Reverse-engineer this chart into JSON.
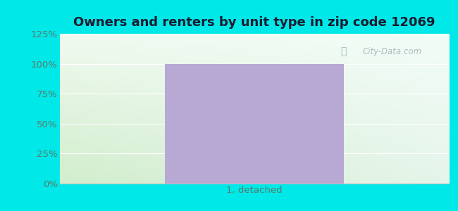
{
  "title": "Owners and renters by unit type in zip code 12069",
  "categories": [
    "1, detached"
  ],
  "values": [
    100
  ],
  "bar_color": "#b8a8d4",
  "ylim": [
    0,
    125
  ],
  "yticks": [
    0,
    25,
    50,
    75,
    100,
    125
  ],
  "ytick_labels": [
    "0%",
    "25%",
    "50%",
    "75%",
    "100%",
    "125%"
  ],
  "title_fontsize": 13,
  "tick_fontsize": 9.5,
  "outer_bg": "#00e8e8",
  "watermark": "City-Data.com",
  "watermark_color": "#a0b8b8",
  "title_color": "#1a1a2e",
  "grid_color": "#e0e8e0",
  "bg_top_color": "#f0f8f0",
  "bg_bottom_left_color": "#d0ecc8",
  "bg_top_right_color": "#e8f4f0"
}
